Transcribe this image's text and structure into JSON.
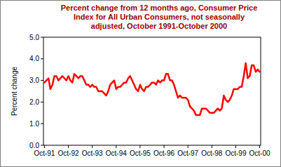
{
  "chart_data": {
    "type": "line",
    "title": "Percent change from 12 months ago, Consumer Price Index for All Urban Consumers, not seasonally adjusted, October 1991-October 2000",
    "y_label": "Percent change",
    "color": "#ff0000",
    "grid": false,
    "categories": [
      "Oct-91",
      null,
      null,
      null,
      null,
      null,
      null,
      null,
      null,
      null,
      null,
      null,
      "Oct-92",
      null,
      null,
      null,
      null,
      null,
      null,
      null,
      null,
      null,
      null,
      null,
      "Oct-93",
      null,
      null,
      null,
      null,
      null,
      null,
      null,
      null,
      null,
      null,
      null,
      "Oct-94",
      null,
      null,
      null,
      null,
      null,
      null,
      null,
      null,
      null,
      null,
      null,
      "Oct-95",
      null,
      null,
      null,
      null,
      null,
      null,
      null,
      null,
      null,
      null,
      null,
      "Oct-96",
      null,
      null,
      null,
      null,
      null,
      null,
      null,
      null,
      null,
      null,
      null,
      "Oct-97",
      null,
      null,
      null,
      null,
      null,
      null,
      null,
      null,
      null,
      null,
      null,
      "Oct-98",
      null,
      null,
      null,
      null,
      null,
      null,
      null,
      null,
      null,
      null,
      null,
      "Oct-99",
      null,
      null,
      null,
      null,
      null,
      null,
      null,
      null,
      null,
      null,
      null,
      "Oct-00"
    ],
    "values": [
      2.9,
      3.0,
      3.1,
      2.6,
      2.8,
      3.2,
      3.2,
      3.0,
      3.1,
      3.2,
      3.1,
      3.0,
      3.2,
      3.0,
      2.9,
      3.3,
      3.2,
      3.1,
      3.2,
      3.2,
      3.0,
      2.8,
      2.8,
      2.7,
      2.8,
      2.7,
      2.7,
      2.5,
      2.5,
      2.5,
      2.4,
      2.3,
      2.5,
      2.8,
      2.9,
      3.0,
      2.6,
      2.7,
      2.7,
      2.8,
      2.9,
      2.9,
      3.1,
      3.2,
      3.0,
      2.8,
      2.6,
      2.5,
      2.8,
      2.6,
      2.5,
      2.7,
      2.7,
      2.8,
      2.9,
      2.9,
      2.8,
      3.0,
      2.9,
      3.0,
      3.0,
      3.3,
      3.3,
      3.0,
      3.0,
      2.8,
      2.5,
      2.2,
      2.3,
      2.2,
      2.2,
      2.2,
      2.1,
      1.8,
      1.7,
      1.6,
      1.4,
      1.4,
      1.4,
      1.7,
      1.7,
      1.7,
      1.6,
      1.5,
      1.5,
      1.5,
      1.6,
      1.7,
      1.6,
      1.7,
      2.3,
      2.1,
      2.0,
      2.1,
      2.3,
      2.6,
      2.6,
      2.6,
      2.7,
      2.7,
      3.2,
      3.8,
      3.1,
      3.2,
      3.7,
      3.7,
      3.4,
      3.5,
      3.4
    ],
    "ylim": [
      0,
      5
    ],
    "yticks": [
      {
        "value": 0,
        "label": "0.0"
      },
      {
        "value": 1,
        "label": "1.0"
      },
      {
        "value": 2,
        "label": "2.0"
      },
      {
        "value": 3,
        "label": "3.0"
      },
      {
        "value": 4,
        "label": "4.0"
      },
      {
        "value": 5,
        "label": "5.0"
      }
    ]
  }
}
